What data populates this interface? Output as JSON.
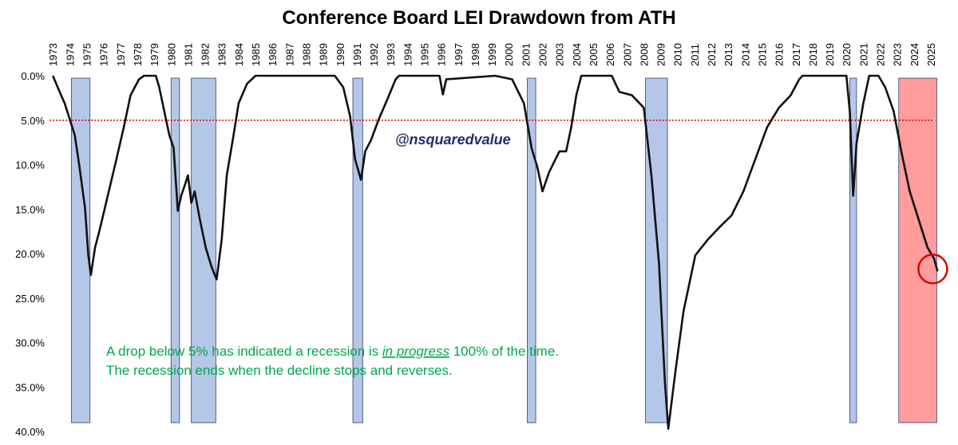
{
  "chart_data": {
    "type": "line",
    "title": "Conference Board LEI Drawdown from ATH",
    "xlim": [
      1972.8,
      2025.9
    ],
    "xticks": [
      1973,
      1974,
      1975,
      1976,
      1977,
      1978,
      1979,
      1980,
      1981,
      1982,
      1983,
      1984,
      1985,
      1986,
      1987,
      1988,
      1989,
      1990,
      1991,
      1992,
      1993,
      1994,
      1995,
      1996,
      1997,
      1998,
      1999,
      2000,
      2001,
      2002,
      2003,
      2004,
      2005,
      2006,
      2007,
      2008,
      2009,
      2010,
      2011,
      2012,
      2013,
      2014,
      2015,
      2016,
      2017,
      2018,
      2019,
      2020,
      2021,
      2022,
      2023,
      2024,
      2025
    ],
    "ylim": [
      0,
      40
    ],
    "y_inverted": true,
    "yticks": [
      {
        "value": 0,
        "label": "0.0%"
      },
      {
        "value": 5,
        "label": "5.0%"
      },
      {
        "value": 10,
        "label": "10.0%"
      },
      {
        "value": 15,
        "label": "15.0%"
      },
      {
        "value": 20,
        "label": "20.0%"
      },
      {
        "value": 25,
        "label": "25.0%"
      },
      {
        "value": 30,
        "label": "30.0%"
      },
      {
        "value": 35,
        "label": "35.0%"
      },
      {
        "value": 40,
        "label": "40.0%"
      }
    ],
    "grid": false,
    "series": [
      {
        "color": "#111111",
        "x": [
          1973.0,
          1973.4,
          1973.7,
          1974.0,
          1974.3,
          1974.55,
          1974.9,
          1975.1,
          1975.25,
          1975.5,
          1975.75,
          1976.2,
          1976.7,
          1977.2,
          1977.6,
          1978.1,
          1978.4,
          1979.1,
          1979.3,
          1979.6,
          1979.9,
          1980.15,
          1980.4,
          1980.6,
          1980.85,
          1981.0,
          1981.2,
          1981.4,
          1981.7,
          1982.05,
          1982.4,
          1982.7,
          1983.0,
          1983.3,
          1983.7,
          1984.0,
          1984.5,
          1985.0,
          1989.7,
          1990.2,
          1990.6,
          1990.9,
          1991.25,
          1991.5,
          1991.85,
          1992.3,
          1992.8,
          1993.3,
          1993.5,
          1995.9,
          1996.1,
          1996.3,
          1999.2,
          2000.2,
          2000.9,
          2001.35,
          2001.7,
          2002.0,
          2002.4,
          2003.0,
          2003.4,
          2003.7,
          2004.0,
          2004.3,
          2006.1,
          2006.55,
          2007.3,
          2008.0,
          2008.45,
          2008.9,
          2009.25,
          2009.45,
          2009.85,
          2010.35,
          2011.05,
          2011.8,
          2012.5,
          2013.2,
          2013.9,
          2014.6,
          2015.3,
          2016.0,
          2016.7,
          2017.2,
          2017.4,
          2020.0,
          2020.2,
          2020.4,
          2020.6,
          2021.0,
          2021.35,
          2021.9,
          2022.3,
          2022.8,
          2023.25,
          2023.75,
          2024.2,
          2024.8,
          2025.2,
          2025.4
        ],
        "values": [
          0,
          1.8,
          3.1,
          4.9,
          6.7,
          9.9,
          14.8,
          20.2,
          22.4,
          19.3,
          17.5,
          13.9,
          9.9,
          5.8,
          2.2,
          0.4,
          0,
          0,
          1.3,
          4.0,
          6.7,
          8.1,
          15.2,
          13.5,
          12.1,
          11.2,
          14.3,
          13.0,
          16.1,
          19.3,
          21.5,
          22.9,
          18.4,
          11.2,
          6.7,
          3.1,
          0.9,
          0,
          0,
          1.3,
          4.5,
          9.4,
          11.7,
          8.5,
          7.2,
          4.9,
          2.7,
          0.4,
          0,
          0,
          2.1,
          0.4,
          0,
          0.4,
          3.1,
          8.1,
          10.3,
          13.0,
          10.8,
          8.5,
          8.5,
          5.8,
          2.2,
          0,
          0,
          1.8,
          2.2,
          3.6,
          11.2,
          21.1,
          34.5,
          39.7,
          33.6,
          26.5,
          20.2,
          18.4,
          17.0,
          15.7,
          13.0,
          9.4,
          5.8,
          3.6,
          2.2,
          0.4,
          0,
          0,
          4.0,
          13.5,
          7.6,
          3.1,
          0,
          0,
          1.3,
          4.0,
          8.5,
          13.0,
          15.7,
          19.3,
          20.6,
          22.0
        ]
      }
    ],
    "shaded_periods": [
      {
        "start": 1974.1,
        "end": 1975.2,
        "color": "#b4c7e7"
      },
      {
        "start": 1980.0,
        "end": 1980.5,
        "color": "#b4c7e7"
      },
      {
        "start": 1981.2,
        "end": 1982.65,
        "color": "#b4c7e7"
      },
      {
        "start": 1990.77,
        "end": 1991.35,
        "color": "#b4c7e7"
      },
      {
        "start": 2001.1,
        "end": 2001.6,
        "color": "#b4c7e7"
      },
      {
        "start": 2008.1,
        "end": 2009.4,
        "color": "#b4c7e7"
      },
      {
        "start": 2020.2,
        "end": 2020.6,
        "color": "#b4c7e7"
      },
      {
        "start": 2023.1,
        "end": 2025.35,
        "color": "#ff9c9c"
      }
    ],
    "threshold": {
      "value": 5,
      "color": "#e00000"
    },
    "highlight_last": true,
    "watermark": "@nsquaredvalue",
    "note": {
      "line1": [
        "A drop below 5% has indicated a recession is ",
        "in progress",
        " 100% of the time."
      ],
      "line2": "The recession ends when the decline stops and reverses."
    }
  }
}
